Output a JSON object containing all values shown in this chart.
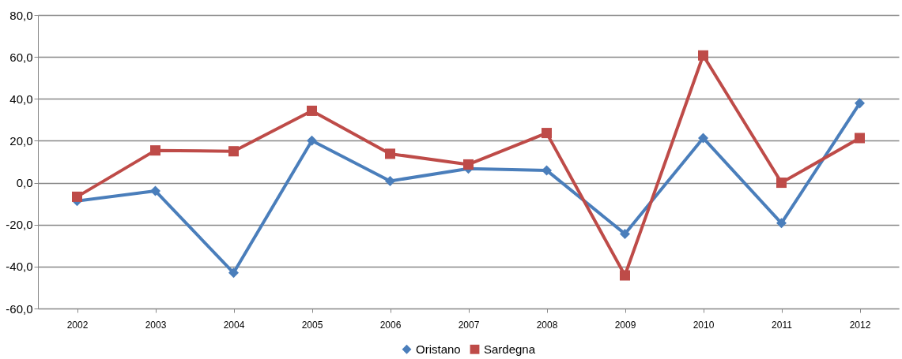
{
  "chart_data": {
    "type": "line",
    "categories": [
      "2002",
      "2003",
      "2004",
      "2005",
      "2006",
      "2007",
      "2008",
      "2009",
      "2010",
      "2011",
      "2012"
    ],
    "series": [
      {
        "name": "Oristano",
        "color": "#4a7ebb",
        "marker": "diamond",
        "values": [
          -8.7,
          -3.9,
          -43,
          20.1,
          0.8,
          6.7,
          5.9,
          -24.4,
          21.3,
          -19.3,
          37.9
        ]
      },
      {
        "name": "Sardegna",
        "color": "#be4b48",
        "marker": "square",
        "values": [
          -6.7,
          15.4,
          15.0,
          34.3,
          13.8,
          8.7,
          23.7,
          -44.2,
          60.7,
          0,
          21.3
        ]
      }
    ],
    "ylim": [
      -60,
      80
    ],
    "yticks": [
      {
        "value": -60,
        "label": "-60,0"
      },
      {
        "value": -40,
        "label": "-40,0"
      },
      {
        "value": -20,
        "label": "-20,0"
      },
      {
        "value": 0,
        "label": "0,0"
      },
      {
        "value": 20,
        "label": "20,0"
      },
      {
        "value": 40,
        "label": "40,0"
      },
      {
        "value": 60,
        "label": "60,0"
      },
      {
        "value": 80,
        "label": "80,0"
      }
    ],
    "grid": "y",
    "legend": "bottom",
    "line_style": "solid"
  }
}
